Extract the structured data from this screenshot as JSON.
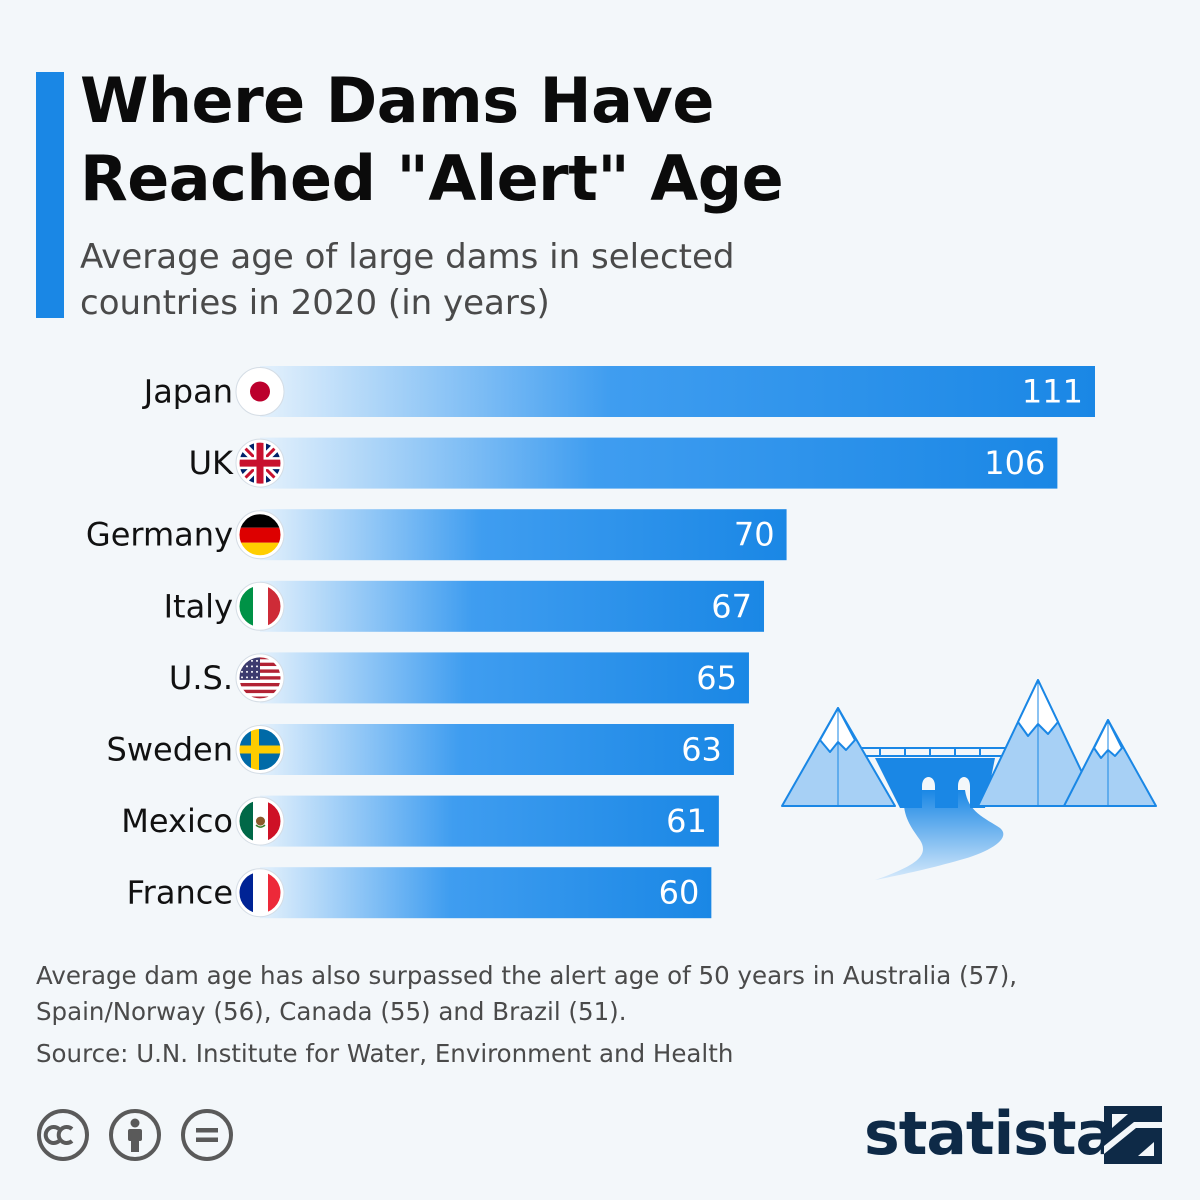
{
  "title_lines": [
    "Where Dams Have",
    "Reached \"Alert\" Age"
  ],
  "subtitle_lines": [
    "Average age of large dams in selected",
    "countries in 2020 (in years)"
  ],
  "chart_data": {
    "type": "bar",
    "orientation": "horizontal",
    "categories": [
      "Japan",
      "UK",
      "Germany",
      "Italy",
      "U.S.",
      "Sweden",
      "Mexico",
      "France"
    ],
    "values": [
      111,
      106,
      70,
      67,
      65,
      63,
      61,
      60
    ],
    "title": "Where Dams Have Reached \"Alert\" Age",
    "subtitle": "Average age of large dams in selected countries in 2020 (in years)",
    "xlim": [
      0,
      111
    ],
    "grid": false,
    "legend": "none",
    "data_labels": "inside-end",
    "bar_color": "#1a87e5",
    "bar_fade_color": "#e4f1fc",
    "category_icons": [
      "flag-japan-icon",
      "flag-uk-icon",
      "flag-germany-icon",
      "flag-italy-icon",
      "flag-us-icon",
      "flag-sweden-icon",
      "flag-mexico-icon",
      "flag-france-icon"
    ]
  },
  "note_lines": [
    "Average dam age has also surpassed the alert age of 50 years in Australia (57),",
    "Spain/Norway (56), Canada (55) and Brazil (51)."
  ],
  "source": "Source: U.N. Institute for Water, Environment and Health",
  "license_icons": [
    "creative-commons-icon",
    "attribution-icon",
    "no-derivatives-icon"
  ],
  "logo": "statista",
  "illustration": "dam-mountains-illustration",
  "colors": {
    "accent": "#1a87e5",
    "background": "#f3f7fa",
    "logo": "#0e2a47",
    "illustration_light": "#a7d0f5"
  }
}
